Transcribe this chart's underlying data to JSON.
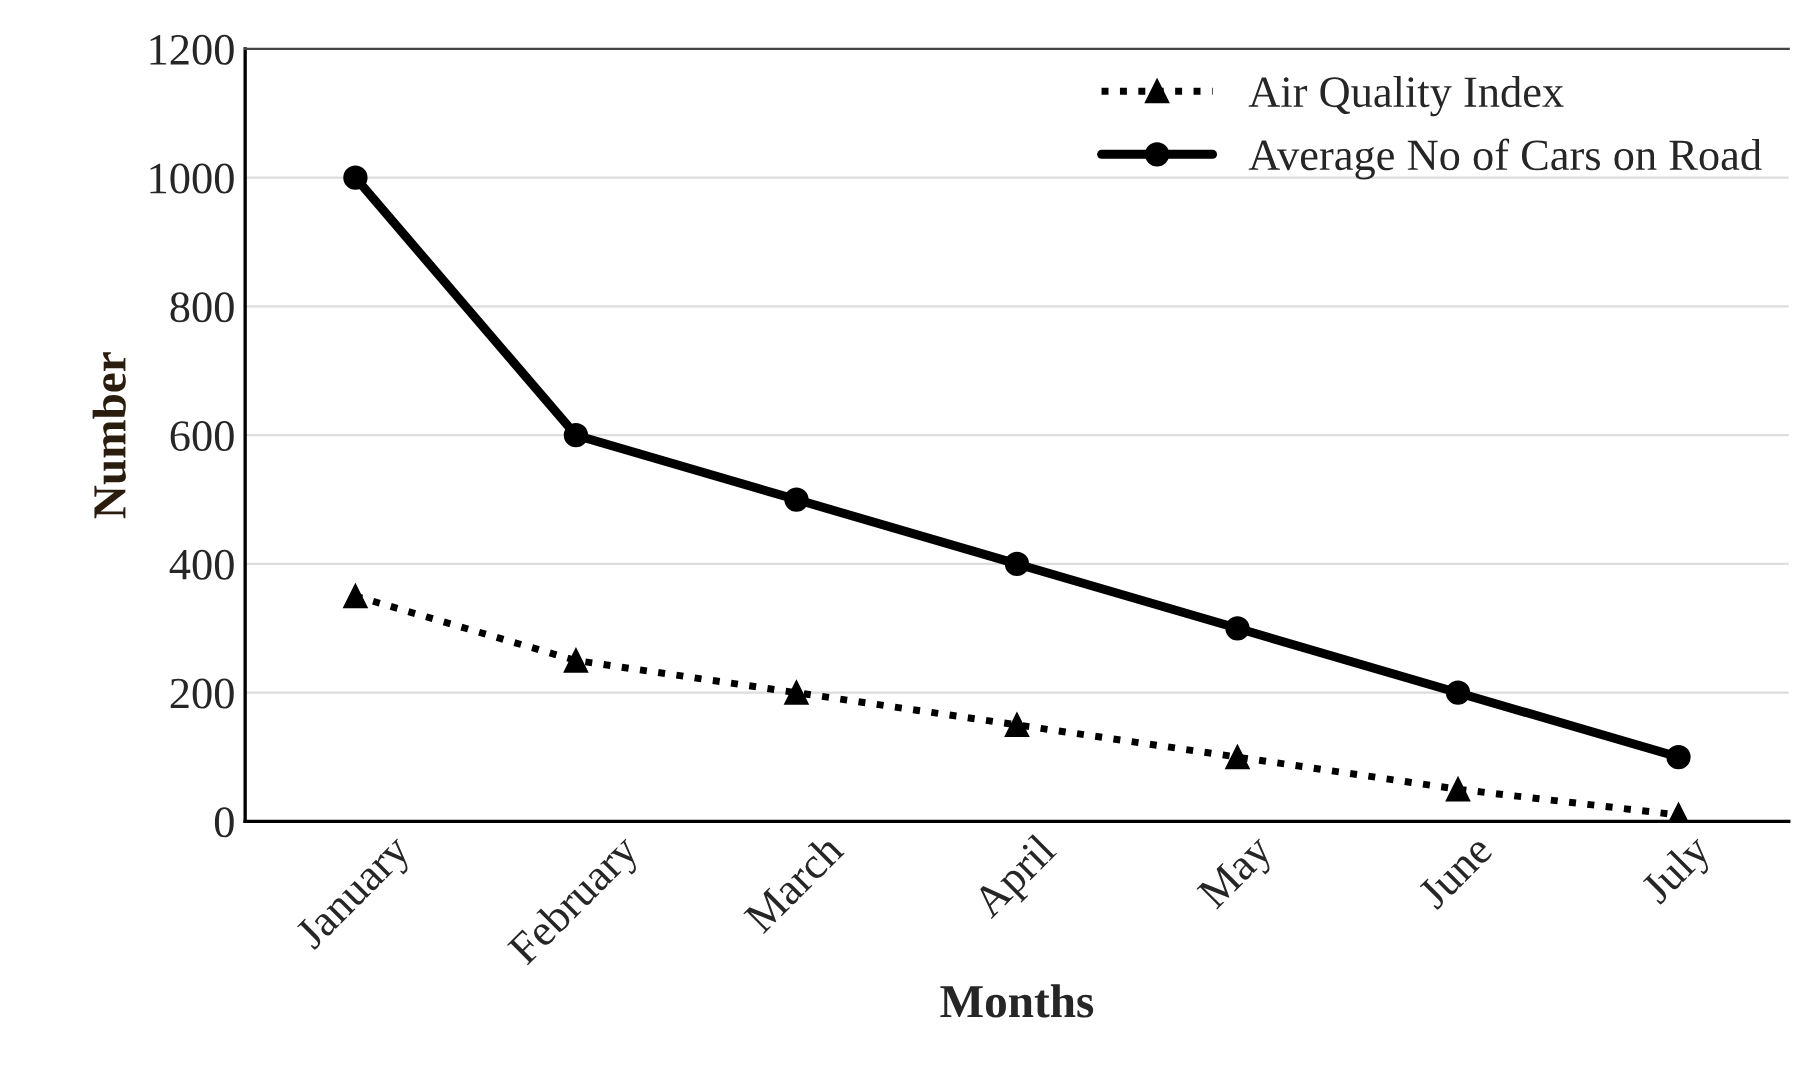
{
  "chart_data": {
    "type": "line",
    "xlabel": "Months",
    "ylabel": "Number",
    "categories": [
      "January",
      "February",
      "March",
      "April",
      "May",
      "June",
      "July"
    ],
    "series": [
      {
        "name": "Air Quality Index",
        "color": "#000000",
        "marker": "triangle",
        "line_style": "dotted",
        "values": [
          350,
          250,
          200,
          150,
          100,
          50,
          10
        ]
      },
      {
        "name": "Average No of Cars on Road",
        "color": "#000000",
        "marker": "circle",
        "line_style": "solid",
        "values": [
          1000,
          600,
          500,
          400,
          300,
          200,
          100
        ]
      }
    ],
    "ylim": [
      0,
      1200
    ],
    "yticks": [
      0,
      200,
      400,
      600,
      800,
      1000,
      1200
    ],
    "grid": "y",
    "legend": "top right"
  }
}
